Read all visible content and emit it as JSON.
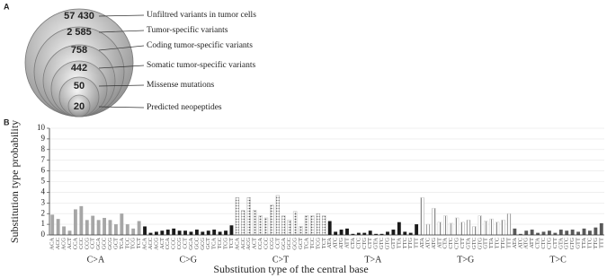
{
  "chart_data": [
    {
      "type": "nested-circles",
      "panel": "A",
      "categories": [
        "Unfiltred variants in tumor cells",
        "Tumor-specific variants",
        "Coding tumor-specific variants",
        "Somatic tumor-specific variants",
        "Missense mutations",
        "Predicted neopeptides"
      ],
      "values": [
        57430,
        2585,
        758,
        442,
        50,
        20
      ],
      "value_labels": [
        "57 430",
        "2 585",
        "758",
        "442",
        "50",
        "20"
      ]
    },
    {
      "type": "bar",
      "panel": "B",
      "ylabel": "Substitution type probability",
      "xlabel": "Substitution type of the central base",
      "ylim": [
        0,
        10
      ],
      "yticks": [
        0,
        1,
        2,
        3,
        4,
        5,
        6,
        7,
        8,
        9,
        10
      ],
      "grid": true,
      "groups": [
        {
          "name": "C>A",
          "color": "#a6a6a6",
          "pattern": "solid",
          "categories": [
            "ACA",
            "ACC",
            "ACG",
            "ACT",
            "CCA",
            "CCC",
            "CCG",
            "CCT",
            "GCA",
            "GCC",
            "GCG",
            "GCT",
            "TCA",
            "TCC",
            "TCG",
            "TCT"
          ],
          "values": [
            1.9,
            1.5,
            0.8,
            0.4,
            2.4,
            2.7,
            1.4,
            1.8,
            1.4,
            1.6,
            1.4,
            1.0,
            2.0,
            1.0,
            0.6,
            1.3
          ]
        },
        {
          "name": "C>G",
          "color": "#1a1a1a",
          "pattern": "solid",
          "categories": [
            "ACA",
            "ACC",
            "ACG",
            "ACT",
            "CCA",
            "CCC",
            "CCG",
            "CCT",
            "GCA",
            "GCC",
            "GCG",
            "GCT",
            "TCA",
            "TCC",
            "TCG",
            "TCT"
          ],
          "values": [
            0.8,
            0.2,
            0.3,
            0.4,
            0.5,
            0.6,
            0.4,
            0.4,
            0.3,
            0.5,
            0.3,
            0.4,
            0.5,
            0.3,
            0.4,
            0.9
          ]
        },
        {
          "name": "C>T",
          "color": "#bfbfbf",
          "pattern": "dots",
          "categories": [
            "ACA",
            "ACC",
            "ACG",
            "ACT",
            "CCA",
            "CCC",
            "CCG",
            "CCT",
            "GCA",
            "GCC",
            "GCG",
            "GCT",
            "TCA",
            "TCC",
            "TCG",
            "TCT"
          ],
          "values": [
            3.5,
            2.3,
            3.5,
            2.3,
            1.8,
            1.6,
            2.8,
            3.7,
            1.8,
            1.4,
            2.2,
            0.8,
            1.8,
            1.8,
            2.0,
            1.8
          ]
        },
        {
          "name": "T>A",
          "color": "#1a1a1a",
          "pattern": "solid",
          "categories": [
            "ATA",
            "ATC",
            "ATG",
            "ATT",
            "CTA",
            "CTC",
            "CTG",
            "CTT",
            "GTA",
            "GTC",
            "GTG",
            "GTT",
            "TTA",
            "TTC",
            "TTG",
            "TTT"
          ],
          "values": [
            1.3,
            0.3,
            0.5,
            0.6,
            0.1,
            0.2,
            0.2,
            0.4,
            0.1,
            0.1,
            0.3,
            0.5,
            1.2,
            0.3,
            0.2,
            1.0
          ]
        },
        {
          "name": "T>G",
          "color": "#d0d0d0",
          "pattern": "stripes",
          "categories": [
            "ATA",
            "ATC",
            "ATG",
            "ATT",
            "CTA",
            "CTC",
            "CTG",
            "CTT",
            "GTA",
            "GTC",
            "GTG",
            "GTT",
            "TTA",
            "TTC",
            "TTG",
            "TTT"
          ],
          "values": [
            3.5,
            1.0,
            2.5,
            1.2,
            1.8,
            1.1,
            1.6,
            1.2,
            1.4,
            0.8,
            1.8,
            1.3,
            1.5,
            1.2,
            1.4,
            2.0
          ]
        },
        {
          "name": "T>C",
          "color": "#595959",
          "pattern": "solid",
          "categories": [
            "ATA",
            "ATC",
            "ATG",
            "ATT",
            "CTA",
            "CTC",
            "CTG",
            "CTT",
            "GTA",
            "GTC",
            "GTG",
            "GTT",
            "TTA",
            "TTC",
            "TTG",
            "TTT"
          ],
          "values": [
            0.6,
            0.1,
            0.4,
            0.5,
            0.2,
            0.3,
            0.4,
            0.2,
            0.5,
            0.4,
            0.5,
            0.3,
            0.6,
            0.4,
            0.7,
            1.1
          ]
        }
      ]
    }
  ]
}
